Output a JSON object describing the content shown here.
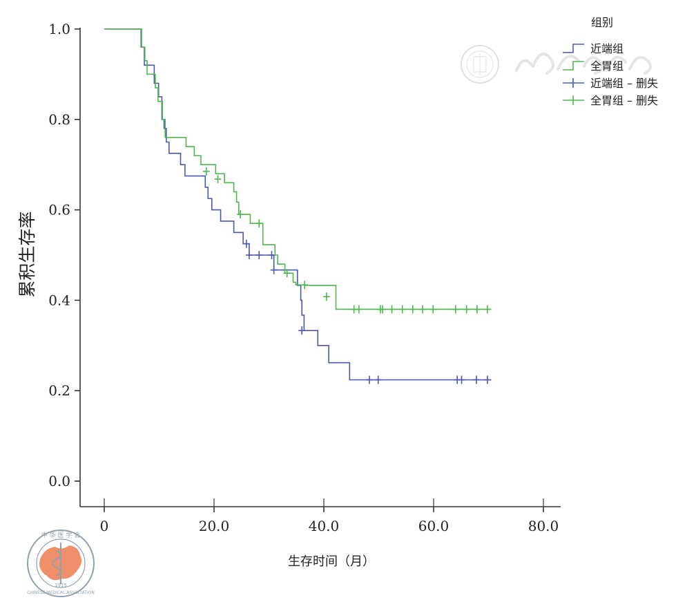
{
  "chart_data": {
    "type": "line",
    "xlabel": "生存时间（月）",
    "ylabel": "累积生存率",
    "xlim": [
      -5,
      83
    ],
    "ylim": [
      -0.06,
      1.02
    ],
    "x_ticks": [
      "0",
      "20.0",
      "40.0",
      "60.0",
      "80.0"
    ],
    "x_tick_values": [
      0,
      20,
      40,
      60,
      80
    ],
    "y_ticks": [
      "0.0",
      "0.2",
      "0.4",
      "0.6",
      "0.8",
      "1.0"
    ],
    "y_tick_values": [
      0,
      0.2,
      0.4,
      0.6,
      0.8,
      1.0
    ],
    "grid": false,
    "legend_title": "组别",
    "legend": [
      "近端组",
      "全胃组",
      "近端组 – 删失",
      "全胃组 – 删失"
    ],
    "legend_position": "top-right",
    "series": [
      {
        "name": "近端组",
        "color": "#4a56b3",
        "step": [
          [
            0,
            1.0
          ],
          [
            6.7,
            0.96
          ],
          [
            7.3,
            0.92
          ],
          [
            8.6,
            0.92
          ],
          [
            9.1,
            0.88
          ],
          [
            9.9,
            0.85
          ],
          [
            10.5,
            0.8
          ],
          [
            10.9,
            0.78
          ],
          [
            11.3,
            0.75
          ],
          [
            11.8,
            0.725
          ],
          [
            13.2,
            0.725
          ],
          [
            13.9,
            0.7
          ],
          [
            14.7,
            0.675
          ],
          [
            16.3,
            0.675
          ],
          [
            18.4,
            0.65
          ],
          [
            18.9,
            0.625
          ],
          [
            19.6,
            0.6
          ],
          [
            20.6,
            0.6
          ],
          [
            21.2,
            0.575
          ],
          [
            22.8,
            0.575
          ],
          [
            23.6,
            0.55
          ],
          [
            24.6,
            0.55
          ],
          [
            25.3,
            0.525
          ],
          [
            26.4,
            0.5
          ],
          [
            30.4,
            0.5
          ],
          [
            30.9,
            0.467
          ],
          [
            34.8,
            0.467
          ],
          [
            35.2,
            0.433
          ],
          [
            35.8,
            0.4
          ],
          [
            36.0,
            0.367
          ],
          [
            36.4,
            0.333
          ],
          [
            38.5,
            0.333
          ],
          [
            38.9,
            0.3
          ],
          [
            40.5,
            0.3
          ],
          [
            40.9,
            0.262
          ],
          [
            44.4,
            0.262
          ],
          [
            44.7,
            0.224
          ],
          [
            70.5,
            0.224
          ]
        ],
        "censored": [
          [
            25.9,
            0.525
          ],
          [
            26.4,
            0.5
          ],
          [
            28.2,
            0.5
          ],
          [
            30.5,
            0.5
          ],
          [
            30.9,
            0.467
          ],
          [
            36.0,
            0.333
          ],
          [
            48.3,
            0.224
          ],
          [
            49.9,
            0.224
          ],
          [
            64.3,
            0.224
          ],
          [
            65.1,
            0.224
          ],
          [
            67.8,
            0.224
          ],
          [
            69.8,
            0.224
          ]
        ]
      },
      {
        "name": "全胃组",
        "color": "#4cb84c",
        "step": [
          [
            0,
            1.0
          ],
          [
            6.8,
            0.96
          ],
          [
            7.4,
            0.93
          ],
          [
            7.8,
            0.9
          ],
          [
            8.7,
            0.9
          ],
          [
            9.3,
            0.87
          ],
          [
            9.8,
            0.84
          ],
          [
            10.6,
            0.8
          ],
          [
            11.1,
            0.76
          ],
          [
            14.5,
            0.76
          ],
          [
            14.9,
            0.74
          ],
          [
            16.0,
            0.74
          ],
          [
            16.4,
            0.72
          ],
          [
            17.3,
            0.72
          ],
          [
            17.6,
            0.7
          ],
          [
            19.9,
            0.7
          ],
          [
            20.3,
            0.68
          ],
          [
            21.4,
            0.68
          ],
          [
            21.9,
            0.66
          ],
          [
            23.2,
            0.66
          ],
          [
            23.6,
            0.64
          ],
          [
            24.1,
            0.617
          ],
          [
            24.5,
            0.59
          ],
          [
            26.2,
            0.59
          ],
          [
            26.6,
            0.57
          ],
          [
            28.7,
            0.57
          ],
          [
            28.9,
            0.523
          ],
          [
            30.8,
            0.523
          ],
          [
            31.1,
            0.5
          ],
          [
            31.6,
            0.48
          ],
          [
            32.5,
            0.48
          ],
          [
            32.9,
            0.46
          ],
          [
            34.0,
            0.46
          ],
          [
            34.4,
            0.44
          ],
          [
            34.9,
            0.434
          ],
          [
            36.2,
            0.434
          ],
          [
            36.6,
            0.433
          ],
          [
            41.8,
            0.433
          ],
          [
            42.2,
            0.38
          ],
          [
            70.5,
            0.38
          ]
        ],
        "censored": [
          [
            18.6,
            0.685
          ],
          [
            20.7,
            0.668
          ],
          [
            24.8,
            0.59
          ],
          [
            28.2,
            0.57
          ],
          [
            33.3,
            0.46
          ],
          [
            36.5,
            0.434
          ],
          [
            40.5,
            0.408
          ],
          [
            45.5,
            0.38
          ],
          [
            46.4,
            0.38
          ],
          [
            50.3,
            0.38
          ],
          [
            50.7,
            0.38
          ],
          [
            52.4,
            0.38
          ],
          [
            54.3,
            0.38
          ],
          [
            56.2,
            0.38
          ],
          [
            58.0,
            0.38
          ],
          [
            59.9,
            0.38
          ],
          [
            64.0,
            0.38
          ],
          [
            66.0,
            0.38
          ],
          [
            67.9,
            0.38
          ],
          [
            69.8,
            0.38
          ]
        ]
      }
    ]
  },
  "watermark": {
    "color": "#c0c0c0",
    "logo_color": "#f0906a"
  }
}
